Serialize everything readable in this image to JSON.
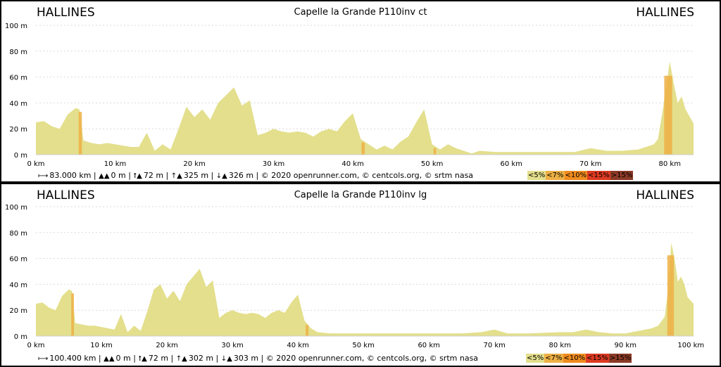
{
  "charts": [
    {
      "start_label": "HALLINES",
      "end_label": "HALLINES",
      "stats": {
        "distance": "83.000 km",
        "min_alt": "0 m",
        "max_alt": "72 m",
        "ascent": "325 m",
        "descent": "326 m",
        "credits": "© 2020 openrunner.com, © centcols.org, © srtm nasa"
      },
      "legend": [
        {
          "label": "<5%",
          "color": "#e3df8c"
        },
        {
          "label": "<7%",
          "color": "#eeb044"
        },
        {
          "label": "<10%",
          "color": "#f08c1e"
        },
        {
          "label": "<15%",
          "color": "#dd3a22"
        },
        {
          "label": ">15%",
          "color": "#8b3a26"
        }
      ]
    },
    {
      "start_label": "HALLINES",
      "end_label": "HALLINES",
      "stats": {
        "distance": "100.400 km",
        "min_alt": "0 m",
        "max_alt": "72 m",
        "ascent": "302 m",
        "descent": "303 m",
        "credits": "© 2020 openrunner.com, © centcols.org, © srtm nasa"
      },
      "legend": [
        {
          "label": "<5%",
          "color": "#e3df8c"
        },
        {
          "label": "<7%",
          "color": "#eeb044"
        },
        {
          "label": "<10%",
          "color": "#f08c1e"
        },
        {
          "label": "<15%",
          "color": "#dd3a22"
        },
        {
          "label": ">15%",
          "color": "#8b3a26"
        }
      ]
    }
  ],
  "chart_data": [
    {
      "type": "area",
      "title": "Capelle la Grande P110inv ct",
      "xlabel": "",
      "ylabel": "",
      "x_unit": "km",
      "y_unit": "m",
      "xlim": [
        0,
        83
      ],
      "ylim": [
        0,
        100
      ],
      "x_ticks": [
        0,
        10,
        20,
        30,
        40,
        50,
        60,
        70,
        80
      ],
      "y_ticks": [
        0,
        20,
        40,
        60,
        80,
        100
      ],
      "grid": true,
      "fill_color": "#e3df8c",
      "steep_color": "#eeb044",
      "x": [
        0,
        1,
        2,
        3,
        4,
        5,
        5.5,
        6,
        7,
        8,
        9,
        10,
        11,
        12,
        13,
        14,
        15,
        16,
        17,
        18,
        19,
        20,
        21,
        22,
        23,
        24,
        25,
        26,
        27,
        28,
        29,
        30,
        31,
        32,
        33,
        34,
        35,
        36,
        37,
        38,
        39,
        40,
        41,
        42,
        43,
        44,
        45,
        46,
        47,
        48,
        49,
        50,
        51,
        52,
        53,
        54,
        55,
        56,
        58,
        60,
        62,
        64,
        66,
        68,
        70,
        72,
        74,
        76,
        77,
        78,
        78.5,
        79,
        79.5,
        80,
        80.5,
        81,
        81.5,
        82,
        83
      ],
      "y": [
        25,
        26,
        22,
        20,
        31,
        36,
        35,
        11,
        9,
        8,
        9,
        8,
        7,
        6,
        6,
        17,
        3,
        8,
        4,
        20,
        37,
        29,
        35,
        27,
        40,
        46,
        52,
        38,
        42,
        15,
        17,
        20,
        18,
        17,
        18,
        17,
        14,
        18,
        20,
        18,
        26,
        32,
        12,
        8,
        4,
        7,
        4,
        10,
        14,
        25,
        35,
        8,
        4,
        8,
        5,
        3,
        1,
        3,
        2,
        2,
        2,
        2,
        2,
        2,
        5,
        3,
        3,
        4,
        6,
        8,
        12,
        30,
        50,
        72,
        55,
        40,
        45,
        35,
        24
      ],
      "steep_segments": [
        [
          5.4,
          5.8
        ],
        [
          41.1,
          41.5
        ],
        [
          50.2,
          50.5
        ],
        [
          79.3,
          80.3
        ]
      ]
    },
    {
      "type": "area",
      "title": "Capelle la Grande P110inv lg",
      "xlabel": "",
      "ylabel": "",
      "x_unit": "km",
      "y_unit": "m",
      "xlim": [
        0,
        100.4
      ],
      "ylim": [
        0,
        100
      ],
      "x_ticks": [
        0,
        10,
        20,
        30,
        40,
        50,
        60,
        70,
        80,
        90,
        100
      ],
      "y_ticks": [
        0,
        20,
        40,
        60,
        80,
        100
      ],
      "grid": true,
      "fill_color": "#e3df8c",
      "steep_color": "#eeb044",
      "x": [
        0,
        1,
        2,
        3,
        4,
        5,
        5.5,
        6,
        7,
        8,
        9,
        10,
        11,
        12,
        13,
        14,
        15,
        16,
        17,
        18,
        19,
        20,
        21,
        22,
        23,
        24,
        25,
        26,
        27,
        28,
        29,
        30,
        31,
        32,
        33,
        34,
        35,
        36,
        37,
        38,
        39,
        40,
        41,
        42,
        43,
        45,
        50,
        55,
        60,
        65,
        68,
        69,
        70,
        72,
        75,
        80,
        82,
        84,
        86,
        88,
        90,
        92,
        94,
        95,
        96,
        96.5,
        97,
        97.5,
        98,
        98.5,
        99,
        99.5,
        100.4
      ],
      "y": [
        25,
        26,
        22,
        20,
        31,
        36,
        35,
        10,
        9,
        8,
        8,
        7,
        6,
        5,
        17,
        3,
        8,
        4,
        19,
        36,
        40,
        29,
        35,
        27,
        40,
        46,
        52,
        38,
        43,
        14,
        18,
        20,
        18,
        17,
        18,
        17,
        14,
        18,
        20,
        18,
        26,
        32,
        12,
        6,
        3,
        2,
        2,
        2,
        2,
        2,
        3,
        4,
        5,
        2,
        2,
        3,
        3,
        5,
        3,
        2,
        2,
        4,
        6,
        8,
        15,
        35,
        72,
        60,
        42,
        46,
        40,
        30,
        25
      ],
      "steep_segments": [
        [
          5.4,
          5.8
        ],
        [
          41.2,
          41.6
        ],
        [
          96.4,
          97.4
        ]
      ]
    }
  ]
}
